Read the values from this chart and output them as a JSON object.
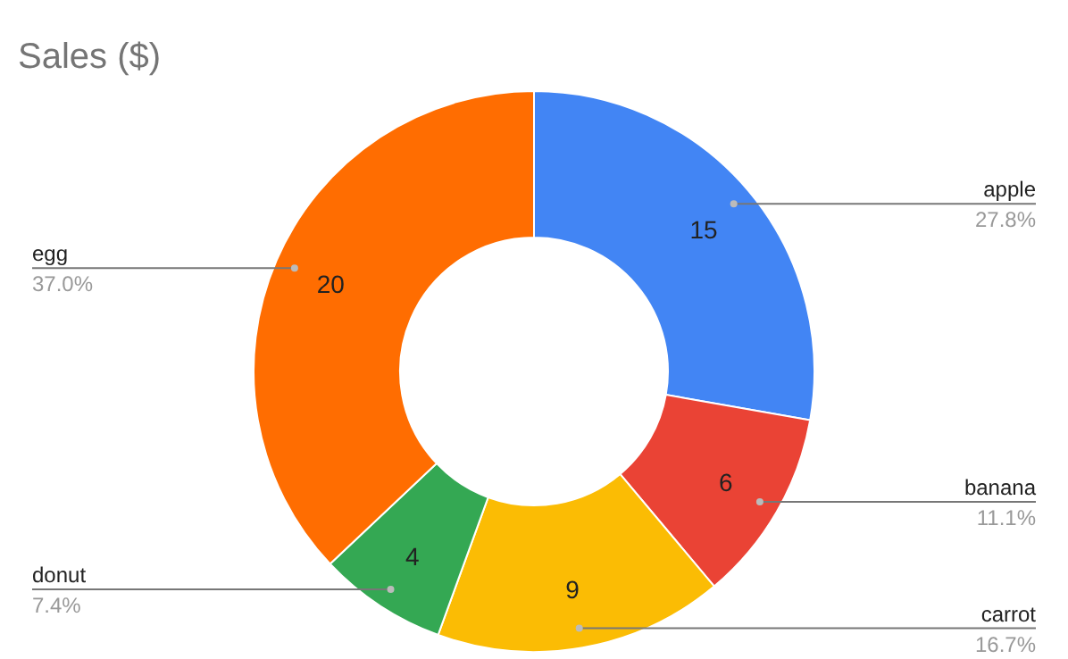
{
  "chart_data": {
    "type": "donut",
    "title": "Sales ($)",
    "categories": [
      "apple",
      "banana",
      "carrot",
      "donut",
      "egg"
    ],
    "values": [
      15,
      6,
      9,
      4,
      20
    ],
    "colors": [
      "#4285f4",
      "#ea4335",
      "#fbbc04",
      "#34a853",
      "#ff6d01"
    ],
    "data_labels": true,
    "annotations": [
      {
        "text": "27.8%",
        "x": "apple"
      },
      {
        "text": "11.1%",
        "x": "banana"
      },
      {
        "text": "16.7%",
        "x": "carrot"
      },
      {
        "text": "7.4%",
        "x": "donut"
      },
      {
        "text": "37.0%",
        "x": "egg"
      }
    ]
  }
}
